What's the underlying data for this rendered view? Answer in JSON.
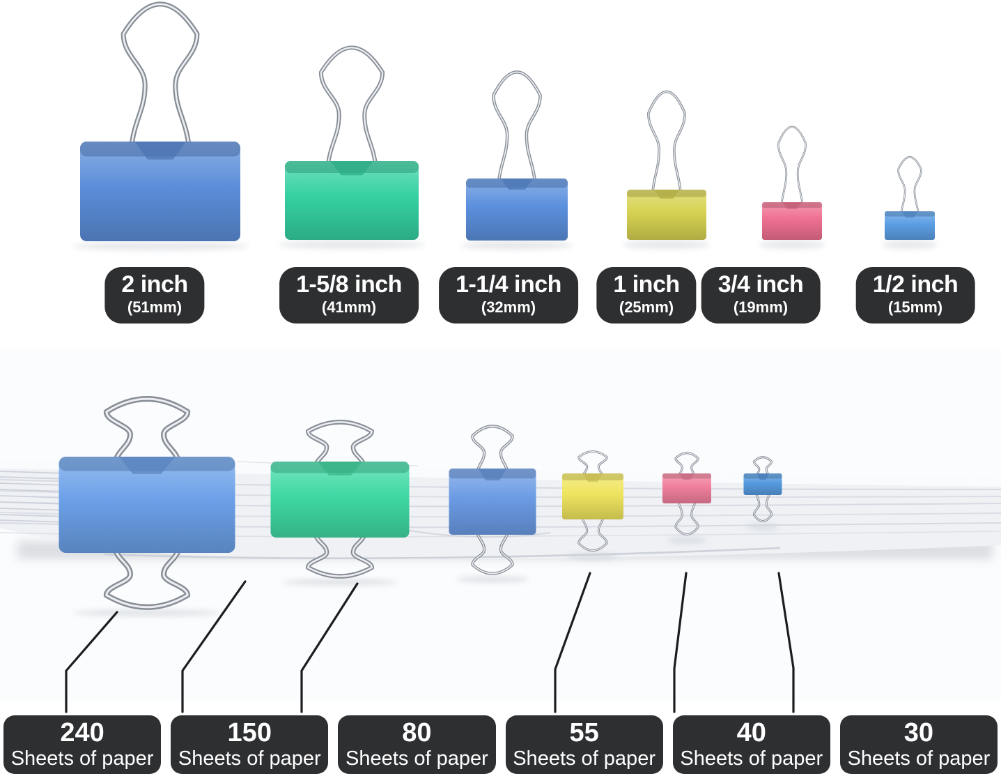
{
  "size_chart": {
    "items": [
      {
        "size": "2 inch",
        "mm": "(51mm)",
        "color_name": "blue",
        "clip_color": "#5b8ed9"
      },
      {
        "size": "1-5/8 inch",
        "mm": "(41mm)",
        "color_name": "green",
        "clip_color": "#35d1a1"
      },
      {
        "size": "1-1/4 inch",
        "mm": "(32mm)",
        "color_name": "blue",
        "clip_color": "#5b90dd"
      },
      {
        "size": "1 inch",
        "mm": "(25mm)",
        "color_name": "yellow",
        "clip_color": "#d7d252"
      },
      {
        "size": "3/4 inch",
        "mm": "(19mm)",
        "color_name": "pink",
        "clip_color": "#ee7090"
      },
      {
        "size": "1/2 inch",
        "mm": "(15mm)",
        "color_name": "blue",
        "clip_color": "#5c9ee3"
      }
    ]
  },
  "capacity_chart": {
    "items": [
      {
        "count": "240",
        "caption": "Sheets of paper",
        "color_name": "blue",
        "clip_color": "#6ba0e8"
      },
      {
        "count": "150",
        "caption": "Sheets of paper",
        "color_name": "green",
        "clip_color": "#3fd9a4"
      },
      {
        "count": "80",
        "caption": "Sheets of paper",
        "color_name": "blue",
        "clip_color": "#6b9be4"
      },
      {
        "count": "55",
        "caption": "Sheets of paper",
        "color_name": "yellow",
        "clip_color": "#efe45f"
      },
      {
        "count": "40",
        "caption": "Sheets of paper",
        "color_name": "pink",
        "clip_color": "#f07f9c"
      },
      {
        "count": "30",
        "caption": "Sheets of paper",
        "color_name": "blue",
        "clip_color": "#569ade"
      }
    ]
  },
  "style": {
    "label_bg": "#2e2f31",
    "label_text": "#ffffff",
    "wire_color": "#878d96",
    "wire_highlight": "#eceef1",
    "paper_color": "#eff1f5",
    "leader_line_color": "#1c1d1f"
  }
}
